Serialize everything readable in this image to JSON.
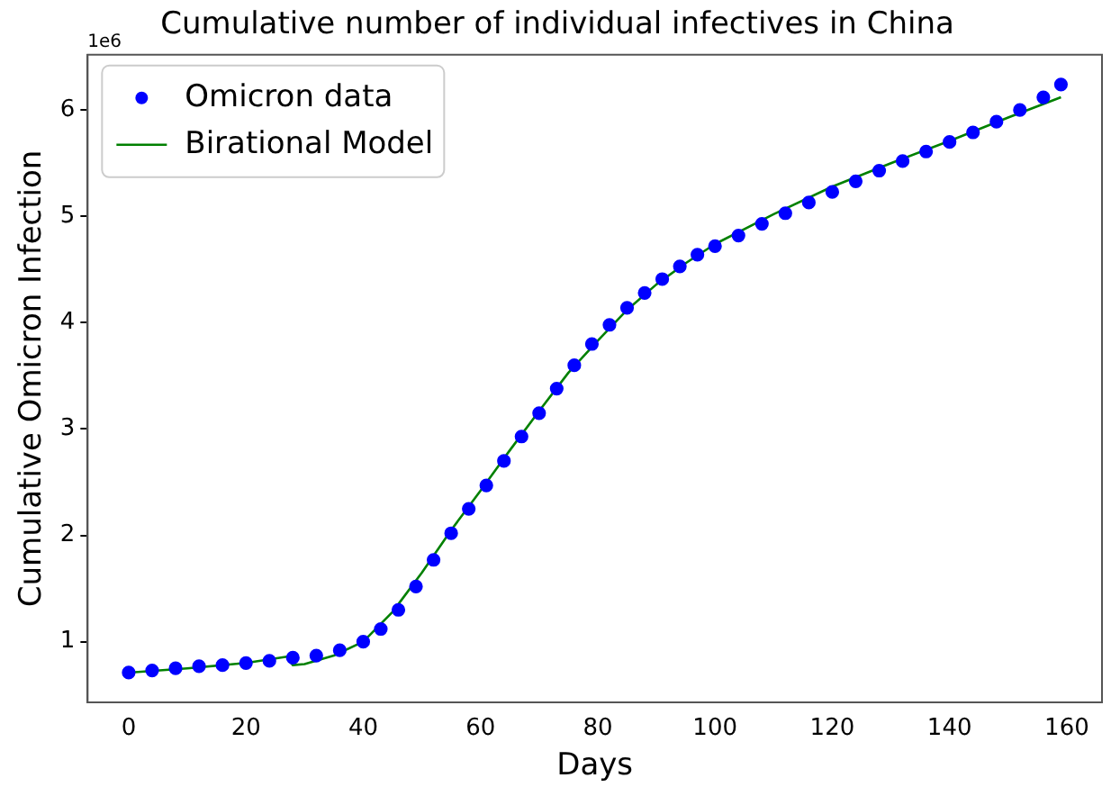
{
  "chart_data": {
    "type": "scatter",
    "title": "Cumulative number of individual infectives in China",
    "xlabel": "Days",
    "ylabel": "Cumulative Omicron Infection",
    "annotations": [
      "1e6"
    ],
    "xlim": [
      -7,
      166
    ],
    "xticks": [
      0,
      20,
      40,
      60,
      80,
      100,
      120,
      140,
      160
    ],
    "ylim": [
      0.43,
      6.52
    ],
    "yticks": [
      1,
      2,
      3,
      4,
      5,
      6
    ],
    "grid": false,
    "legend": "top left",
    "series": [
      {
        "name": "Omicron data",
        "marker": "circle",
        "color": "#0000ff",
        "x": [
          0,
          4,
          8,
          12,
          16,
          20,
          24,
          28,
          32,
          36,
          40,
          43,
          46,
          49,
          52,
          55,
          58,
          61,
          64,
          67,
          70,
          73,
          76,
          79,
          82,
          85,
          88,
          91,
          94,
          97,
          100,
          104,
          108,
          112,
          116,
          120,
          124,
          128,
          132,
          136,
          140,
          144,
          148,
          152,
          156,
          159
        ],
        "values": [
          0.71,
          0.73,
          0.75,
          0.77,
          0.78,
          0.8,
          0.82,
          0.85,
          0.87,
          0.92,
          1.0,
          1.12,
          1.3,
          1.52,
          1.77,
          2.02,
          2.25,
          2.47,
          2.7,
          2.93,
          3.15,
          3.38,
          3.6,
          3.8,
          3.98,
          4.14,
          4.28,
          4.41,
          4.53,
          4.64,
          4.72,
          4.82,
          4.93,
          5.03,
          5.13,
          5.23,
          5.33,
          5.43,
          5.52,
          5.61,
          5.7,
          5.79,
          5.89,
          6.0,
          6.12,
          6.24
        ]
      },
      {
        "name": "Birational Model",
        "type": "line",
        "marker": "none",
        "color": "#008000",
        "x": [
          0,
          10,
          20,
          27,
          28,
          30,
          35,
          40,
          45,
          50,
          55,
          60,
          65,
          70,
          75,
          80,
          85,
          90,
          95,
          100,
          110,
          120,
          130,
          140,
          150,
          159
        ],
        "values": [
          0.71,
          0.75,
          0.8,
          0.86,
          0.78,
          0.79,
          0.87,
          1.0,
          1.28,
          1.65,
          2.05,
          2.42,
          2.8,
          3.17,
          3.53,
          3.83,
          4.12,
          4.36,
          4.56,
          4.74,
          5.02,
          5.28,
          5.5,
          5.71,
          5.93,
          6.12
        ]
      }
    ]
  }
}
